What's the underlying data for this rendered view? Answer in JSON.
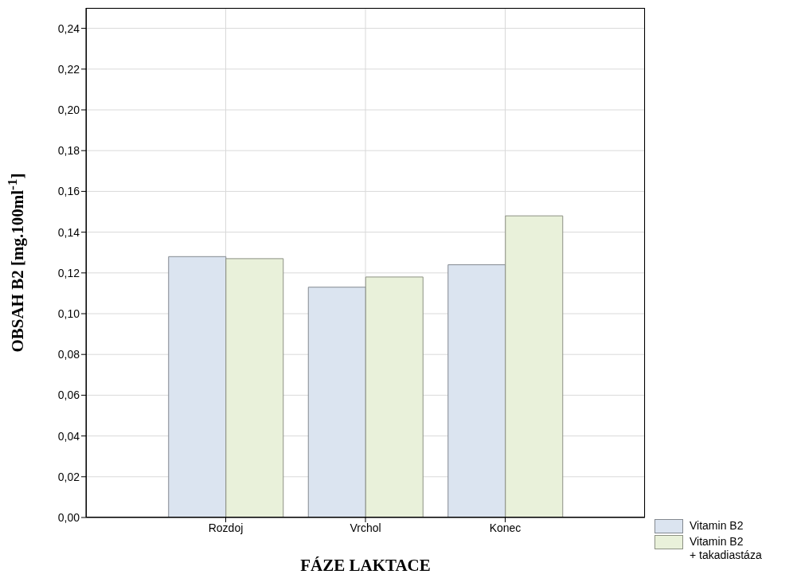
{
  "chart_data": {
    "type": "bar",
    "xlabel": "FÁZE LAKTACE",
    "ylabel": "OBSAH B2 [mg.100ml$^{-1}$]",
    "categories": [
      "Rozdoj",
      "Vrchol",
      "Konec"
    ],
    "series": [
      {
        "name": "Vitamin B2",
        "color": "#dbe4f0",
        "values": [
          0.128,
          0.113,
          0.124
        ]
      },
      {
        "name": "Vitamin B2\n+ takadiastáza",
        "color": "#e9f1da",
        "values": [
          0.127,
          0.118,
          0.148
        ]
      }
    ],
    "ylim": [
      0,
      0.25
    ],
    "yticks": [
      {
        "value": 0,
        "label": "0,00"
      },
      {
        "value": 0.02,
        "label": "0,02"
      },
      {
        "value": 0.04,
        "label": "0,04"
      },
      {
        "value": 0.06,
        "label": "0,06"
      },
      {
        "value": 0.08,
        "label": "0,08"
      },
      {
        "value": 0.1,
        "label": "0,10"
      },
      {
        "value": 0.12,
        "label": "0,12"
      },
      {
        "value": 0.14,
        "label": "0,14"
      },
      {
        "value": 0.16,
        "label": "0,16"
      },
      {
        "value": 0.18,
        "label": "0,18"
      },
      {
        "value": 0.2,
        "label": "0,20"
      },
      {
        "value": 0.22,
        "label": "0,22"
      },
      {
        "value": 0.24,
        "label": "0,24"
      }
    ],
    "grid": true,
    "legend": "bottom right"
  }
}
